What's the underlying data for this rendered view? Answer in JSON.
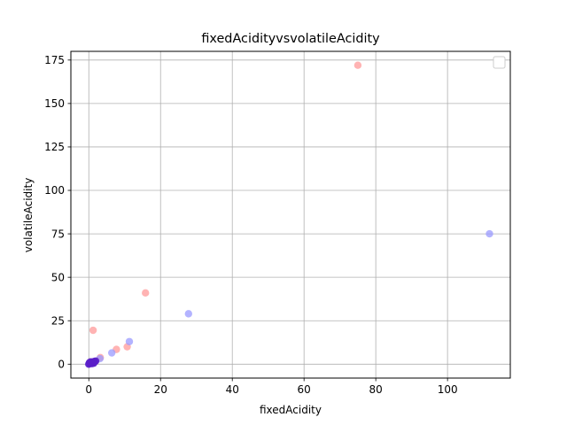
{
  "chart_data": {
    "type": "scatter",
    "title": "fixedAcidityvsvolatileAcidity",
    "xlabel": "fixedAcidity",
    "ylabel": "volatileAcidity",
    "xlim": [
      -5,
      117.5
    ],
    "ylim": [
      -8,
      180
    ],
    "xticks": [
      0,
      20,
      40,
      60,
      80,
      100
    ],
    "yticks": [
      0,
      25,
      50,
      75,
      100,
      125,
      150,
      175
    ],
    "grid": true,
    "legend": {
      "placement": "top-right",
      "entries": []
    },
    "series": [
      {
        "color": "#ff9999",
        "points": [
          [
            75,
            172
          ],
          [
            15.8,
            41
          ],
          [
            1.2,
            19.5
          ],
          [
            10.7,
            10
          ],
          [
            7.7,
            8.5
          ],
          [
            3.2,
            3.8
          ],
          [
            1.5,
            1.6
          ],
          [
            0.8,
            1.2
          ],
          [
            0.3,
            0.6
          ],
          [
            0.1,
            0.2
          ]
        ]
      },
      {
        "color": "#9999ff",
        "points": [
          [
            111.7,
            75
          ],
          [
            27.8,
            29
          ],
          [
            11.3,
            13
          ],
          [
            6.4,
            6.5
          ],
          [
            3.1,
            3.2
          ],
          [
            1.3,
            1.5
          ],
          [
            0.7,
            1.0
          ],
          [
            0.2,
            0.4
          ],
          [
            0.0,
            0.1
          ]
        ]
      },
      {
        "color": "#5a1ec8",
        "points": [
          [
            0.0,
            0.0
          ],
          [
            0.4,
            0.4
          ],
          [
            0.8,
            0.8
          ],
          [
            1.2,
            1.2
          ],
          [
            1.6,
            1.5
          ],
          [
            0.2,
            0.9
          ],
          [
            0.9,
            0.3
          ],
          [
            1.9,
            1.8
          ],
          [
            0.5,
            1.3
          ],
          [
            1.4,
            0.6
          ]
        ]
      }
    ]
  }
}
